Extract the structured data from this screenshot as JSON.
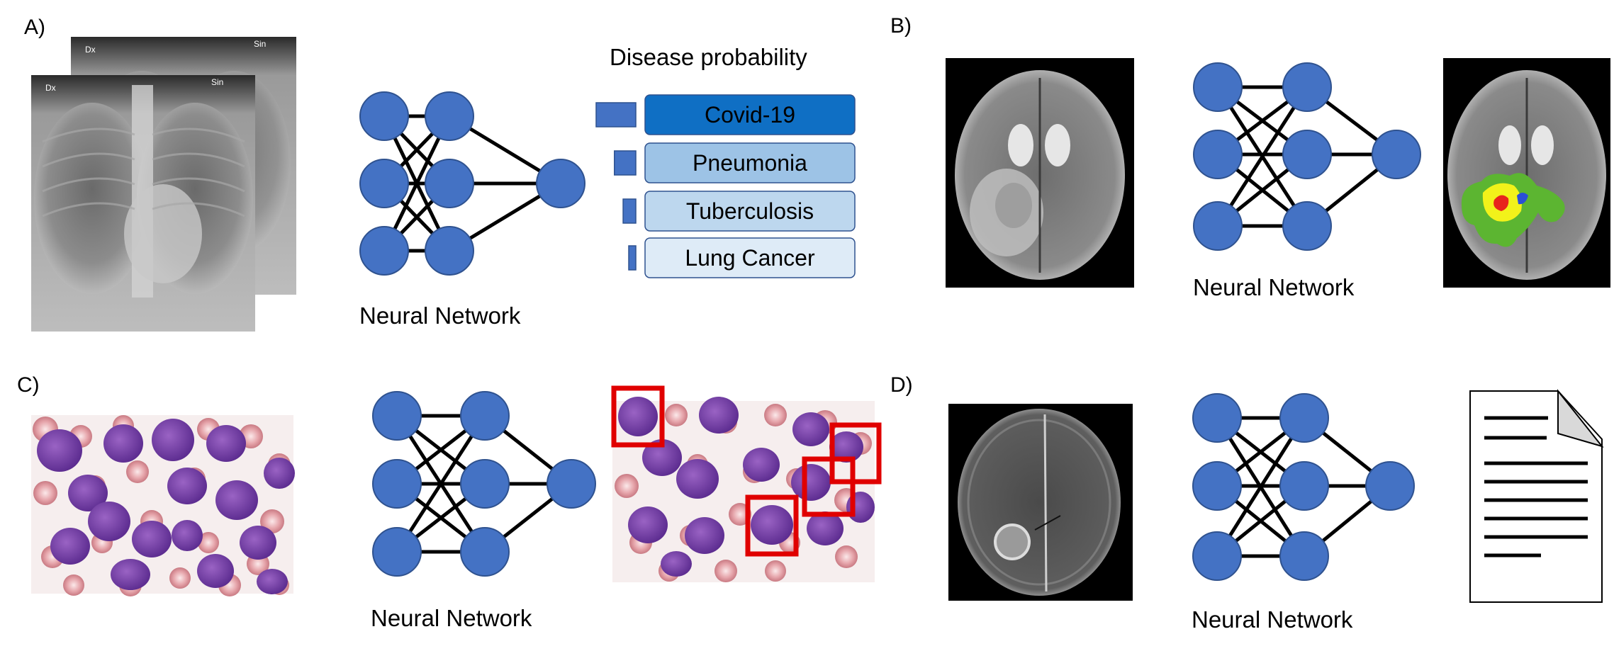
{
  "panels": {
    "a": {
      "label": "A)",
      "xray_markers": {
        "left": "Dx",
        "right": "Sin"
      },
      "network_label": "Neural Network",
      "probability_title": "Disease probability",
      "diseases": [
        {
          "name": "Covid-19",
          "probability": 0.5,
          "fill": "#0f6fc4"
        },
        {
          "name": "Pneumonia",
          "probability": 0.27,
          "fill": "#9dc3e6"
        },
        {
          "name": "Tuberculosis",
          "probability": 0.16,
          "fill": "#bdd7ee"
        },
        {
          "name": "Lung Cancer",
          "probability": 0.08,
          "fill": "#deebf7"
        }
      ]
    },
    "b": {
      "label": "B)",
      "network_label": "Neural Network"
    },
    "c": {
      "label": "C)",
      "network_label": "Neural Network"
    },
    "d": {
      "label": "D)",
      "network_label": "Neural Network"
    }
  },
  "colors": {
    "node_fill": "#4472c4",
    "node_stroke": "#2f528f",
    "edge": "#000000",
    "bbox": "#e00000",
    "segmentation_edema": "#5cb531",
    "segmentation_core": "#f2f21a",
    "segmentation_necrosis": "#e8241c"
  }
}
